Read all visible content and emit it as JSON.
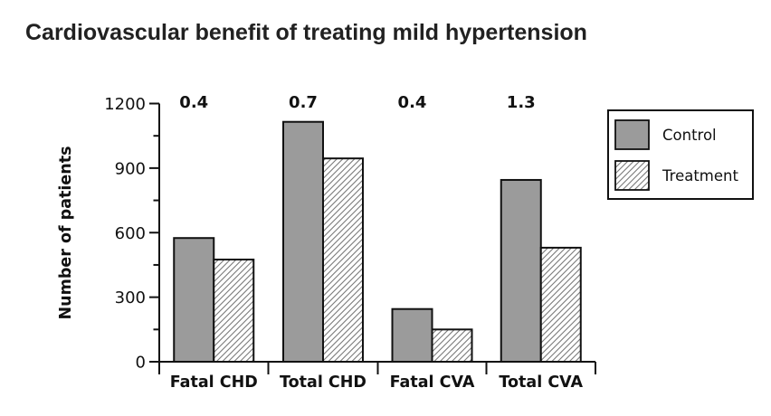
{
  "page": {
    "title": "Cardiovascular benefit of treating mild hypertension"
  },
  "chart_data": {
    "type": "bar",
    "title": "Cardiovascular benefit of treating mild hypertension",
    "ylabel": "Number of patients",
    "xlabel": "",
    "ylim": [
      0,
      1200
    ],
    "ytick_major": [
      0,
      300,
      600,
      900,
      1200
    ],
    "ytick_minor": [
      150,
      450,
      750,
      1050
    ],
    "grid": false,
    "categories": [
      "Fatal CHD",
      "Total CHD",
      "Fatal CVA",
      "Total CVA"
    ],
    "series": [
      {
        "name": "Control",
        "pattern": "solid-gray",
        "values": [
          575,
          1115,
          245,
          845
        ]
      },
      {
        "name": "Treatment",
        "pattern": "diagonal-hatch",
        "values": [
          475,
          945,
          150,
          530
        ]
      }
    ],
    "annotations": [
      "0.4",
      "0.7",
      "0.4",
      "1.3"
    ],
    "legend_position": "top-right",
    "colors": {
      "control_fill": "#9b9b9b",
      "treatment_fill": "#ffffff",
      "hatch_line": "#7a7a7a",
      "outline": "#111111",
      "title_text": "#212121"
    }
  }
}
